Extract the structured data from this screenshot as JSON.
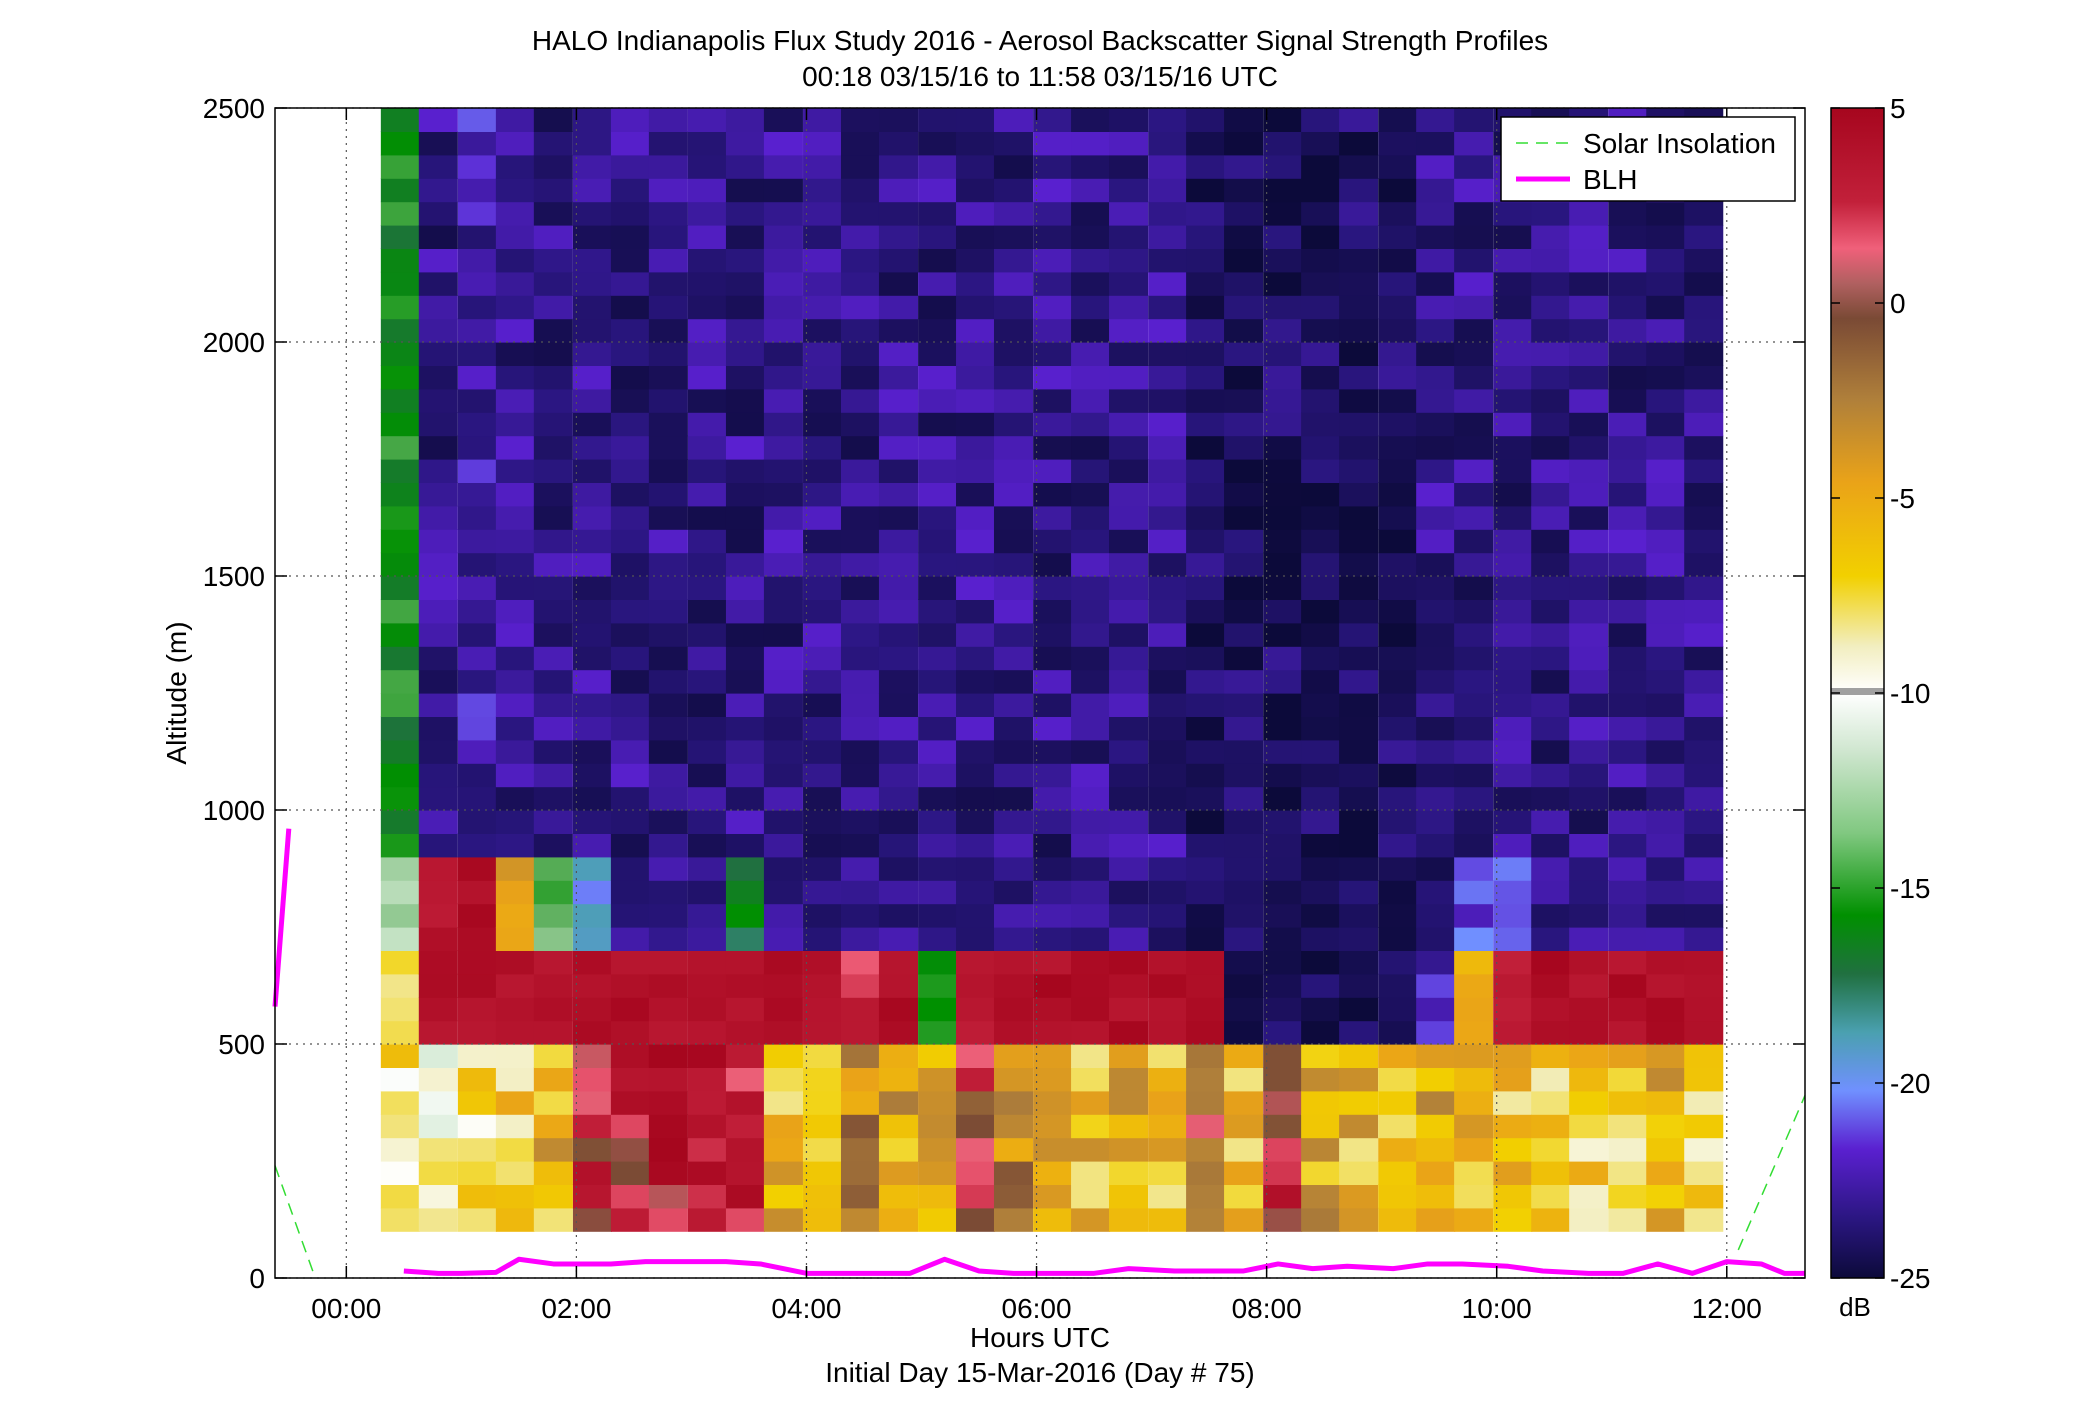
{
  "chart_data": {
    "type": "heatmap",
    "title": "HALO Indianapolis Flux Study 2016 - Aerosol Backscatter Signal Strength Profiles",
    "subtitle": "00:18 03/15/16 to 11:58 03/15/16  UTC",
    "xlabel": "Hours UTC",
    "xlabel2": "Initial Day 15-Mar-2016 (Day # 75)",
    "ylabel": "Altitude (m)",
    "xlim": [
      -0.62,
      12.68
    ],
    "ylim": [
      0,
      2500
    ],
    "x_ticks": [
      0,
      2,
      4,
      6,
      8,
      10,
      12
    ],
    "x_tick_labels": [
      "00:00",
      "02:00",
      "04:00",
      "06:00",
      "08:00",
      "10:00",
      "12:00"
    ],
    "y_ticks": [
      0,
      500,
      1000,
      1500,
      2000,
      2500
    ],
    "y_tick_labels": [
      "0",
      "500",
      "1000",
      "1500",
      "2000",
      "2500"
    ],
    "grid": true,
    "legend": {
      "placement": "top-right",
      "entries": [
        {
          "name": "Solar Insolation",
          "color": "#33dd33",
          "style": "dashed"
        },
        {
          "name": "BLH",
          "color": "#ff00ff",
          "style": "solid"
        }
      ]
    },
    "colorbar": {
      "label": "dB",
      "range": [
        -25,
        5
      ],
      "ticks": [
        5,
        0,
        -5,
        -10,
        -15,
        -20,
        -25
      ],
      "tick_labels": [
        "5",
        "0",
        "-5",
        "-10",
        "-15",
        "-20",
        "-25"
      ]
    },
    "heatmap": {
      "x_start_hours": 0.3,
      "x_end_hours": 12.0,
      "columns": 35,
      "y_start_m": 100,
      "y_step_m": 50,
      "rows": 48,
      "first_column_altitude_top_m": 2500,
      "value_units": "dB",
      "column_profiles": [
        {
          "x": 0.3,
          "below_500": -8,
          "at_500_700": -8,
          "at_700_900": -12,
          "above": -16
        },
        {
          "x": 0.63,
          "below_500": -9,
          "at_500_700": 4,
          "at_700_900": 3,
          "above": -23
        },
        {
          "x": 0.97,
          "below_500": -8,
          "at_500_700": 4,
          "at_700_900": 4,
          "above": -22
        },
        {
          "x": 1.3,
          "below_500": -7,
          "at_500_700": 4,
          "at_700_900": -5,
          "above": -23
        },
        {
          "x": 1.63,
          "below_500": -6,
          "at_500_700": 4,
          "at_700_900": -14,
          "above": -23
        },
        {
          "x": 1.97,
          "below_500": 2,
          "at_500_700": 4,
          "at_700_900": -20,
          "above": -23
        },
        {
          "x": 2.3,
          "below_500": 2,
          "at_500_700": 4,
          "at_700_900": -23,
          "above": -23
        },
        {
          "x": 2.63,
          "below_500": 3,
          "at_500_700": 4,
          "at_700_900": -23,
          "above": -23
        },
        {
          "x": 2.97,
          "below_500": 3,
          "at_500_700": 4,
          "at_700_900": -23,
          "above": -23
        },
        {
          "x": 3.3,
          "below_500": 3,
          "at_500_700": 4,
          "at_700_900": -17,
          "above": -23
        },
        {
          "x": 3.63,
          "below_500": -6,
          "at_500_700": 4,
          "at_700_900": -23,
          "above": -23
        },
        {
          "x": 3.97,
          "below_500": -6,
          "at_500_700": 4,
          "at_700_900": -23,
          "above": -23
        },
        {
          "x": 4.3,
          "below_500": -3,
          "at_500_700": 2,
          "at_700_900": -23,
          "above": -23
        },
        {
          "x": 4.63,
          "below_500": -5,
          "at_500_700": 4,
          "at_700_900": -23,
          "above": -23
        },
        {
          "x": 4.97,
          "below_500": -5,
          "at_500_700": -16,
          "at_700_900": -23,
          "above": -23
        },
        {
          "x": 5.3,
          "below_500": 1,
          "at_500_700": 3,
          "at_700_900": -23,
          "above": -23
        },
        {
          "x": 5.63,
          "below_500": -3,
          "at_500_700": 4,
          "at_700_900": -23,
          "above": -23
        },
        {
          "x": 5.97,
          "below_500": -6,
          "at_500_700": 4,
          "at_700_900": -23,
          "above": -23
        },
        {
          "x": 6.3,
          "below_500": -6,
          "at_500_700": 4,
          "at_700_900": -23,
          "above": -23
        },
        {
          "x": 6.63,
          "below_500": -5,
          "at_500_700": 4,
          "at_700_900": -23,
          "above": -23
        },
        {
          "x": 6.97,
          "below_500": -6,
          "at_500_700": 4,
          "at_700_900": -23,
          "above": -23
        },
        {
          "x": 7.3,
          "below_500": -1,
          "at_500_700": 4,
          "at_700_900": -24,
          "above": -24
        },
        {
          "x": 7.63,
          "below_500": -6,
          "at_500_700": -24,
          "at_700_900": -24,
          "above": -24
        },
        {
          "x": 7.97,
          "below_500": 2,
          "at_500_700": -24,
          "at_700_900": -24,
          "above": -24
        },
        {
          "x": 8.3,
          "below_500": -5,
          "at_500_700": -24,
          "at_700_900": -24,
          "above": -24
        },
        {
          "x": 8.63,
          "below_500": -6,
          "at_500_700": -24,
          "at_700_900": -24,
          "above": -24
        },
        {
          "x": 8.97,
          "below_500": -6,
          "at_500_700": -24,
          "at_700_900": -24,
          "above": -24
        },
        {
          "x": 9.3,
          "below_500": -5,
          "at_500_700": -22,
          "at_700_900": -24,
          "above": -23
        },
        {
          "x": 9.63,
          "below_500": -6,
          "at_500_700": -5,
          "at_700_900": -21,
          "above": -23
        },
        {
          "x": 9.97,
          "below_500": -7,
          "at_500_700": 3,
          "at_700_900": -21,
          "above": -23
        },
        {
          "x": 10.3,
          "below_500": -7,
          "at_500_700": 4,
          "at_700_900": -23,
          "above": -23
        },
        {
          "x": 10.63,
          "below_500": -7,
          "at_500_700": 4,
          "at_700_900": -23,
          "above": -23
        },
        {
          "x": 10.97,
          "below_500": -7,
          "at_500_700": 4,
          "at_700_900": -23,
          "above": -23
        },
        {
          "x": 11.3,
          "below_500": -5,
          "at_500_700": 4,
          "at_700_900": -23,
          "above": -23
        },
        {
          "x": 11.63,
          "below_500": -7,
          "at_500_700": 4,
          "at_700_900": -23,
          "above": -23
        }
      ]
    },
    "series": [
      {
        "name": "BLH",
        "color": "#ff00ff",
        "segments": [
          {
            "x": [
              -0.62,
              -0.5
            ],
            "y": [
              580,
              960
            ]
          },
          {
            "x": [
              0.5,
              0.8,
              1.0,
              1.3,
              1.5,
              1.8,
              2.0,
              2.3,
              2.6,
              3.0,
              3.3,
              3.6,
              4.0,
              4.3,
              4.6,
              4.9,
              5.2,
              5.5,
              5.8,
              6.2,
              6.5,
              6.8,
              7.2,
              7.5,
              7.8,
              8.1,
              8.4,
              8.7,
              9.1,
              9.4,
              9.7,
              10.1,
              10.4,
              10.8,
              11.1,
              11.4,
              11.7,
              12.0,
              12.3,
              12.5,
              12.68
            ],
            "y": [
              15,
              10,
              10,
              12,
              40,
              30,
              30,
              30,
              35,
              35,
              35,
              30,
              10,
              10,
              10,
              10,
              40,
              15,
              10,
              10,
              10,
              20,
              15,
              15,
              15,
              30,
              20,
              25,
              20,
              30,
              30,
              25,
              15,
              10,
              10,
              30,
              10,
              35,
              30,
              10,
              10
            ]
          }
        ]
      },
      {
        "name": "Solar Insolation",
        "color": "#33dd33",
        "segments": [
          {
            "x": [
              -0.62,
              -0.27
            ],
            "y": [
              240,
              0
            ]
          },
          {
            "x": [
              12.1,
              12.68
            ],
            "y": [
              60,
              390
            ]
          }
        ]
      }
    ]
  }
}
